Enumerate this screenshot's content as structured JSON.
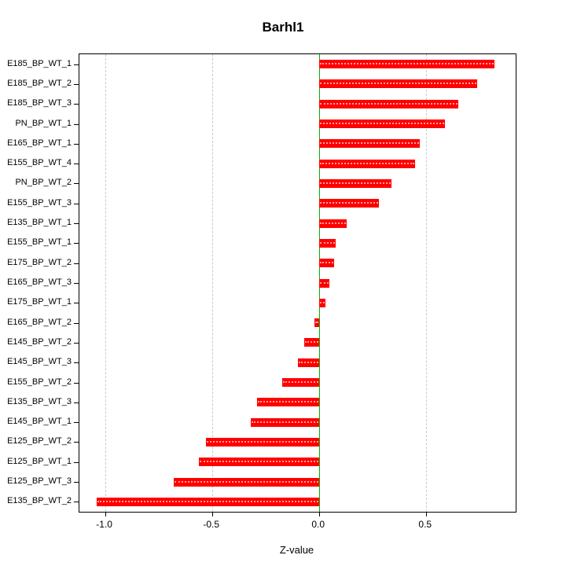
{
  "chart_data": {
    "type": "bar",
    "orientation": "horizontal",
    "title": "Barhl1",
    "xlabel": "Z-value",
    "ylabel": "",
    "categories": [
      "E185_BP_WT_1",
      "E185_BP_WT_2",
      "E185_BP_WT_3",
      "PN_BP_WT_1",
      "E165_BP_WT_1",
      "E155_BP_WT_4",
      "PN_BP_WT_2",
      "E155_BP_WT_3",
      "E135_BP_WT_1",
      "E155_BP_WT_1",
      "E175_BP_WT_2",
      "E165_BP_WT_3",
      "E175_BP_WT_1",
      "E165_BP_WT_2",
      "E145_BP_WT_2",
      "E145_BP_WT_3",
      "E155_BP_WT_2",
      "E135_BP_WT_3",
      "E145_BP_WT_1",
      "E125_BP_WT_2",
      "E125_BP_WT_1",
      "E125_BP_WT_3",
      "E135_BP_WT_2"
    ],
    "values": [
      0.82,
      0.74,
      0.65,
      0.59,
      0.47,
      0.45,
      0.34,
      0.28,
      0.13,
      0.08,
      0.07,
      0.05,
      0.03,
      -0.02,
      -0.07,
      -0.1,
      -0.17,
      -0.29,
      -0.32,
      -0.53,
      -0.56,
      -0.68,
      -1.04
    ],
    "xlim": [
      -1.12,
      0.92
    ],
    "xticks": [
      -1.0,
      -0.5,
      0.0,
      0.5
    ],
    "xtick_labels": [
      "-1.0",
      "-0.5",
      "0.0",
      "0.5"
    ],
    "grid": true,
    "legend": "none",
    "bar_color": "#ff0000",
    "zero_line_color": "#00b400",
    "grid_color": "#c9c9c9"
  }
}
